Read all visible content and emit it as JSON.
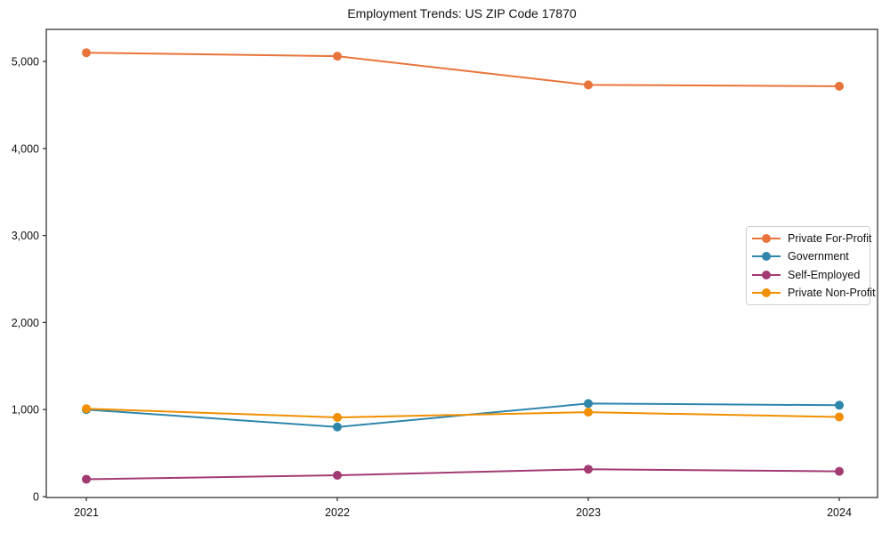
{
  "chart_data": {
    "type": "line",
    "title": "Employment Trends: US ZIP Code 17870",
    "categories": [
      "2021",
      "2022",
      "2023",
      "2024"
    ],
    "series": [
      {
        "name": "Private For-Profit",
        "color": "#E8743B",
        "values": [
          5100,
          5060,
          4730,
          4715
        ]
      },
      {
        "name": "Government",
        "color": "#2E86AB",
        "values": [
          1000,
          800,
          1070,
          1050
        ]
      },
      {
        "name": "Self-Employed",
        "color": "#A23B72",
        "values": [
          200,
          245,
          315,
          290
        ]
      },
      {
        "name": "Private Non-Profit",
        "color": "#F18F01",
        "values": [
          1010,
          910,
          970,
          915
        ]
      }
    ],
    "xlabel": "",
    "ylabel": "",
    "ylim": [
      0,
      5368
    ],
    "yticks": [
      0,
      1000,
      2000,
      3000,
      4000,
      5000
    ],
    "ytick_labels": [
      "0",
      "1,000",
      "2,000",
      "3,000",
      "4,000",
      "5,000"
    ],
    "grid": false,
    "legend_position": "center-right",
    "marker": "circle",
    "axis_color": "#262626",
    "text_color": "#111111"
  }
}
